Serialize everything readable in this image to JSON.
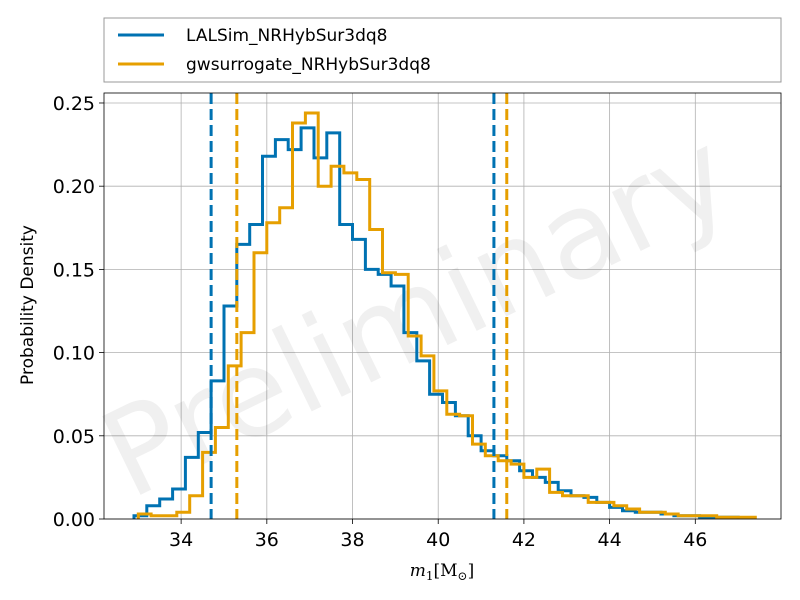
{
  "chart_data": {
    "type": "histogram",
    "xlabel": "m₁[M⊙]",
    "xlabel_main": "m",
    "xlabel_sub": "1",
    "xlabel_unit": "[M",
    "xlabel_unit_sub": "⊙",
    "xlabel_close": "]",
    "ylabel": "Probability Density",
    "xlim": [
      32.2,
      48.0
    ],
    "ylim": [
      0.0,
      0.256
    ],
    "xticks": [
      34,
      36,
      38,
      40,
      42,
      44,
      46
    ],
    "yticks": [
      0.0,
      0.05,
      0.1,
      0.15,
      0.2,
      0.25
    ],
    "ytick_labels": [
      "0.00",
      "0.05",
      "0.10",
      "0.15",
      "0.20",
      "0.25"
    ],
    "grid": true,
    "legend_position": "top, above plot",
    "watermark": "Preliminary",
    "series": [
      {
        "name": "LALSim_NRHybSur3dq8",
        "color": "#0072b2",
        "bin_edges": [
          32.9,
          33.2,
          33.5,
          33.8,
          34.1,
          34.4,
          34.7,
          35.0,
          35.3,
          35.6,
          35.9,
          36.2,
          36.5,
          36.8,
          37.1,
          37.4,
          37.7,
          38.0,
          38.3,
          38.6,
          38.9,
          39.2,
          39.5,
          39.8,
          40.1,
          40.4,
          40.7,
          41.0,
          41.3,
          41.6,
          41.9,
          42.2,
          42.5,
          42.8,
          43.1,
          43.4,
          43.7,
          44.0,
          44.3,
          44.6,
          44.9,
          45.2,
          45.5,
          45.8,
          46.1,
          46.4,
          46.7,
          47.0
        ],
        "densities": [
          0.002,
          0.008,
          0.012,
          0.018,
          0.037,
          0.052,
          0.083,
          0.128,
          0.165,
          0.177,
          0.218,
          0.228,
          0.222,
          0.235,
          0.217,
          0.232,
          0.177,
          0.168,
          0.15,
          0.147,
          0.14,
          0.112,
          0.095,
          0.075,
          0.07,
          0.062,
          0.05,
          0.041,
          0.038,
          0.035,
          0.029,
          0.025,
          0.022,
          0.017,
          0.014,
          0.013,
          0.01,
          0.007,
          0.005,
          0.004,
          0.004,
          0.003,
          0.002,
          0.002,
          0.001,
          0.001,
          0.001
        ],
        "credible_interval": [
          34.7,
          41.3
        ]
      },
      {
        "name": "gwsurrogate_NRHybSur3dq8",
        "color": "#e69f00",
        "bin_edges": [
          33.0,
          33.3,
          33.6,
          33.9,
          34.2,
          34.5,
          34.8,
          35.1,
          35.4,
          35.7,
          36.0,
          36.3,
          36.6,
          36.9,
          37.2,
          37.5,
          37.8,
          38.1,
          38.4,
          38.7,
          39.0,
          39.3,
          39.6,
          39.9,
          40.2,
          40.5,
          40.8,
          41.1,
          41.4,
          41.7,
          42.0,
          42.3,
          42.6,
          42.9,
          43.2,
          43.5,
          43.8,
          44.1,
          44.4,
          44.7,
          45.0,
          45.3,
          45.6,
          45.9,
          46.2,
          46.5,
          46.8,
          47.1,
          47.4
        ],
        "densities": [
          0.003,
          0.002,
          0.002,
          0.004,
          0.014,
          0.04,
          0.055,
          0.092,
          0.112,
          0.16,
          0.178,
          0.187,
          0.238,
          0.244,
          0.2,
          0.212,
          0.208,
          0.204,
          0.174,
          0.148,
          0.147,
          0.11,
          0.098,
          0.077,
          0.063,
          0.062,
          0.045,
          0.038,
          0.035,
          0.033,
          0.025,
          0.03,
          0.016,
          0.014,
          0.014,
          0.01,
          0.01,
          0.008,
          0.006,
          0.004,
          0.004,
          0.003,
          0.002,
          0.002,
          0.002,
          0.001,
          0.001,
          0.001
        ],
        "credible_interval": [
          35.3,
          41.6
        ]
      }
    ]
  }
}
